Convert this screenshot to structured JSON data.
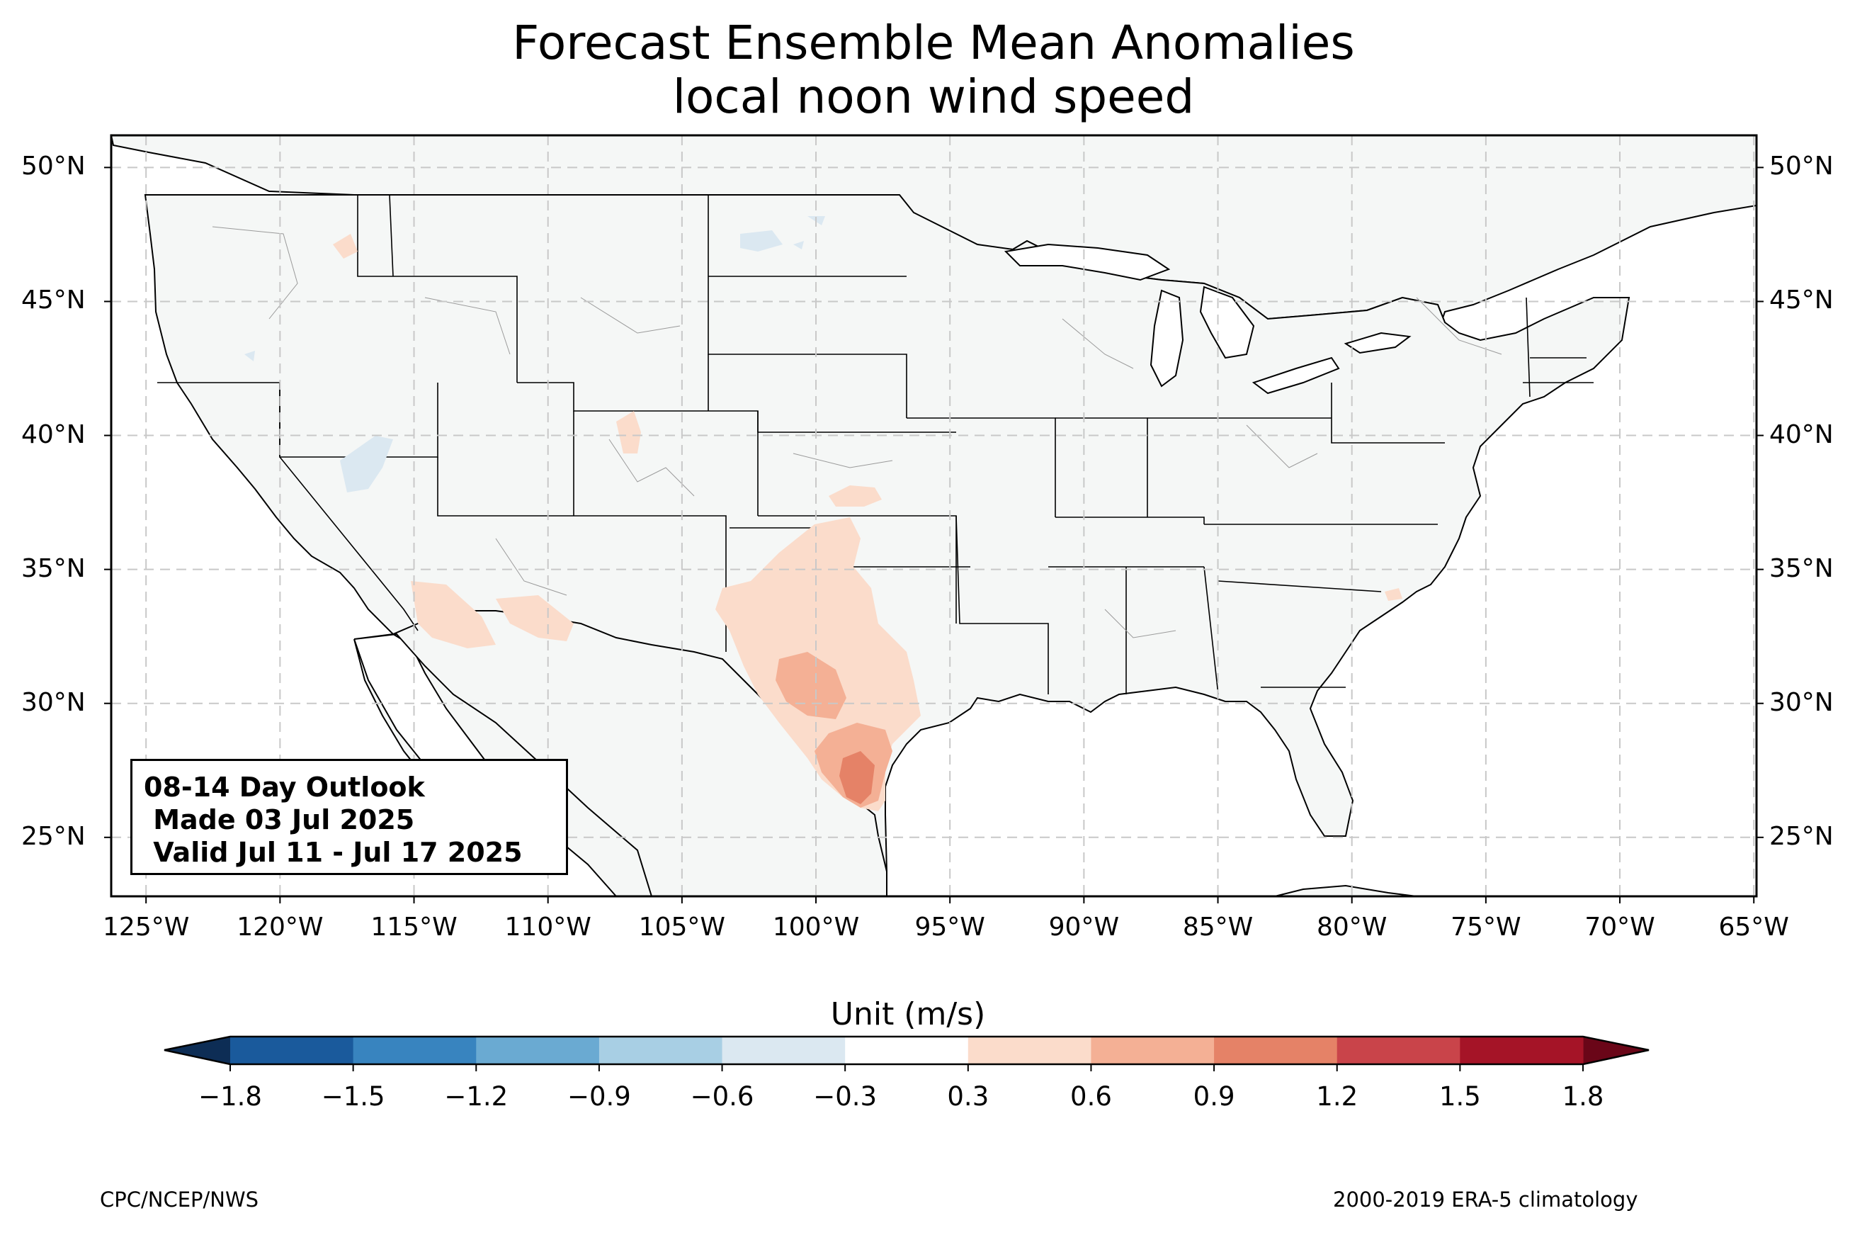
{
  "title": {
    "line1": "Forecast Ensemble Mean Anomalies",
    "line2": "local noon wind speed"
  },
  "map": {
    "projection": "PlateCarree",
    "lon_range": [
      -126.3,
      -64.9
    ],
    "lat_range": [
      22.8,
      51.2
    ],
    "gridlines": "dashed grey",
    "lat_ticks": [
      "25°N",
      "30°N",
      "35°N",
      "40°N",
      "45°N",
      "50°N"
    ],
    "lon_ticks": [
      "125°W",
      "120°W",
      "115°W",
      "110°W",
      "105°W",
      "100°W",
      "95°W",
      "90°W",
      "85°W",
      "80°W",
      "75°W",
      "70°W",
      "65°W"
    ],
    "land_color": "#f5f7f6",
    "ocean_color": "#ffffff"
  },
  "info_box": {
    "line1": "08-14 Day Outlook",
    "line2": " Made 03 Jul 2025",
    "line3": " Valid Jul 11 - Jul 17 2025"
  },
  "anomaly_regions": [
    {
      "region": "south Texas coast",
      "level": "0.9 to 1.2",
      "color": "#e58267"
    },
    {
      "region": "south Texas",
      "level": "0.6 to 0.9",
      "color": "#f4b095"
    },
    {
      "region": "west-central Texas",
      "level": "0.6 to 0.9",
      "color": "#f4b095"
    },
    {
      "region": "Texas and western Oklahoma",
      "level": "0.3 to 0.6",
      "color": "#fbdccb"
    },
    {
      "region": "southern Arizona",
      "level": "0.3 to 0.6",
      "color": "#fbdccb"
    },
    {
      "region": "northern Idaho",
      "level": "0.3 to 0.6",
      "color": "#fbdccb"
    },
    {
      "region": "Colorado",
      "level": "0.3 to 0.6",
      "color": "#fbdccb"
    },
    {
      "region": "southern Kansas",
      "level": "0.3 to 0.6",
      "color": "#fbdccb"
    },
    {
      "region": "North Carolina coast",
      "level": "0.3 to 0.6",
      "color": "#fbdccb"
    },
    {
      "region": "northern Nevada / Utah",
      "level": "-0.6 to -0.3",
      "color": "#dbe8f1"
    },
    {
      "region": "North Dakota",
      "level": "-0.6 to -0.3",
      "color": "#dbe8f1"
    }
  ],
  "colorbar": {
    "title": "Unit (m/s)",
    "ticks": [
      "−1.8",
      "−1.5",
      "−1.2",
      "−0.9",
      "−0.6",
      "−0.3",
      "0.3",
      "0.6",
      "0.9",
      "1.2",
      "1.5",
      "1.8"
    ],
    "colors": [
      "#1a5a9c",
      "#3884bf",
      "#6aaad2",
      "#a8cfe4",
      "#dbe8f1",
      "#ffffff",
      "#fbdccb",
      "#f4b095",
      "#e58267",
      "#c9444a",
      "#a51427"
    ],
    "extend_min_color": "#0d2d55",
    "extend_max_color": "#6a0618"
  },
  "footer": {
    "left": "CPC/NCEP/NWS",
    "right": "2000-2019 ERA-5 climatology"
  }
}
